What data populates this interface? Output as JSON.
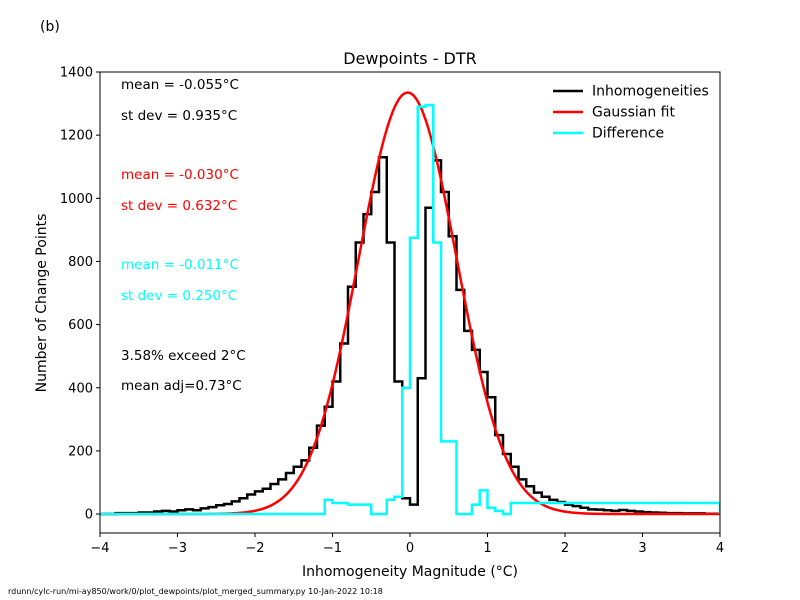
{
  "panel_label": "(b)",
  "footer": "rdunn/cylc-run/mi-ay850/work/0/plot_dewpoints/plot_merged_summary.py   10-Jan-2022 10:18",
  "stats": [
    {
      "text": "mean = -0.055°C",
      "color": "#000000"
    },
    {
      "text": "st dev =  0.935°C",
      "color": "#000000"
    },
    {
      "text": "mean = -0.030°C",
      "color": "#ff0000"
    },
    {
      "text": "st dev =  0.632°C",
      "color": "#ff0000"
    },
    {
      "text": "mean = -0.011°C",
      "color": "#00ffff"
    },
    {
      "text": "st dev =  0.250°C",
      "color": "#00ffff"
    },
    {
      "text": "3.58% exceed 2°C",
      "color": "#000000"
    },
    {
      "text": "mean adj=0.73°C",
      "color": "#000000"
    }
  ],
  "chart_data": {
    "type": "line",
    "title": "Dewpoints - DTR",
    "xlabel": "Inhomogeneity Magnitude (°C)",
    "ylabel": "Number of Change Points",
    "xlim": [
      -4,
      4
    ],
    "ylim": [
      -60,
      1400
    ],
    "xticks": [
      -4,
      -3,
      -2,
      -1,
      0,
      1,
      2,
      3,
      4
    ],
    "yticks": [
      0,
      200,
      400,
      600,
      800,
      1000,
      1200,
      1400
    ],
    "grid": false,
    "legend_position": "top-right",
    "series": [
      {
        "name": "Inhomogeneities",
        "color": "#000000",
        "style": "step",
        "x": [
          -4.0,
          -3.8,
          -3.5,
          -3.3,
          -3.2,
          -3.1,
          -3.0,
          -2.9,
          -2.8,
          -2.7,
          -2.6,
          -2.5,
          -2.4,
          -2.3,
          -2.2,
          -2.1,
          -2.0,
          -1.9,
          -1.8,
          -1.7,
          -1.6,
          -1.5,
          -1.4,
          -1.3,
          -1.2,
          -1.1,
          -1.0,
          -0.9,
          -0.8,
          -0.7,
          -0.6,
          -0.5,
          -0.4,
          -0.3,
          -0.2,
          -0.1,
          0.0,
          0.1,
          0.2,
          0.3,
          0.4,
          0.5,
          0.6,
          0.7,
          0.8,
          0.9,
          1.0,
          1.1,
          1.2,
          1.3,
          1.4,
          1.5,
          1.6,
          1.7,
          1.8,
          1.9,
          2.0,
          2.1,
          2.2,
          2.3,
          2.4,
          2.5,
          2.6,
          2.7,
          2.8,
          2.9,
          3.0,
          3.1,
          3.2,
          3.3,
          3.5,
          3.8,
          4.0
        ],
        "y": [
          0,
          3,
          5,
          8,
          10,
          8,
          12,
          15,
          12,
          18,
          22,
          28,
          32,
          40,
          50,
          62,
          72,
          80,
          95,
          110,
          130,
          150,
          170,
          210,
          280,
          340,
          420,
          540,
          720,
          860,
          950,
          1020,
          1130,
          860,
          420,
          50,
          30,
          430,
          970,
          1120,
          1020,
          880,
          710,
          580,
          520,
          450,
          370,
          250,
          190,
          150,
          110,
          88,
          68,
          55,
          45,
          38,
          30,
          25,
          20,
          15,
          14,
          12,
          10,
          13,
          10,
          8,
          6,
          5,
          4,
          3,
          2,
          1,
          0
        ]
      },
      {
        "name": "Gaussian fit",
        "color": "#ff0000",
        "style": "curve",
        "mean": -0.03,
        "std": 0.632,
        "peak": 1335
      },
      {
        "name": "Difference",
        "color": "#00ffff",
        "style": "step",
        "x": [
          -4.0,
          -1.1,
          -1.0,
          -0.8,
          -0.5,
          -0.3,
          -0.2,
          -0.1,
          0.0,
          0.1,
          0.2,
          0.3,
          0.4,
          0.6,
          0.7,
          0.8,
          0.9,
          1.0,
          1.1,
          1.2,
          1.3,
          4.0
        ],
        "y": [
          0,
          45,
          35,
          30,
          0,
          45,
          55,
          400,
          875,
          1290,
          1295,
          860,
          230,
          0,
          0,
          30,
          75,
          20,
          10,
          0,
          35,
          0
        ]
      }
    ]
  }
}
